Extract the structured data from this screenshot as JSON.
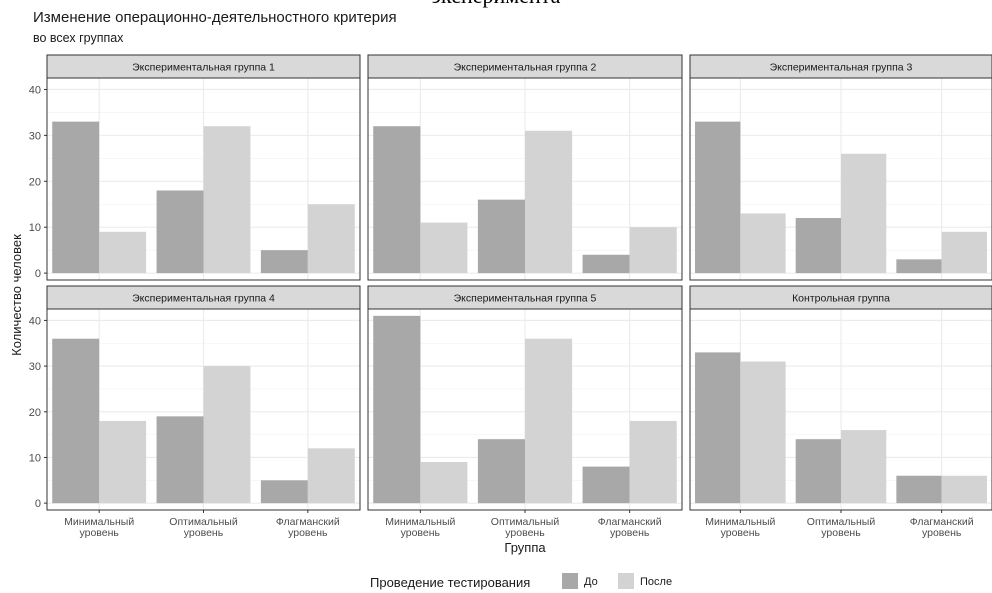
{
  "header": {
    "cut_title": "эксперимента",
    "title": "Изменение операционно-деятельностного критерия",
    "subtitle": "во всех группах"
  },
  "colors": {
    "before": "#a8a8a8",
    "after": "#d3d3d3",
    "strip": "#d9d9d9",
    "grid": "#ebebeb"
  },
  "legend": {
    "title": "Проведение тестирования",
    "items": [
      "До",
      "После"
    ]
  },
  "chart_data": {
    "type": "bar",
    "facets": true,
    "xlabel": "Группа",
    "ylabel": "Количество человек",
    "ylim": [
      -1.5,
      42.5
    ],
    "yticks": [
      0,
      10,
      20,
      30,
      40
    ],
    "grid": true,
    "legend_position": "bottom",
    "categories": [
      [
        "Минимальный",
        "уровень"
      ],
      [
        "Оптимальный",
        "уровень"
      ],
      [
        "Флагманский",
        "уровень"
      ]
    ],
    "series_names": [
      "До",
      "После"
    ],
    "panels": [
      {
        "title": "Экспериментальная группа 1",
        "before": [
          33,
          18,
          5
        ],
        "after": [
          9,
          32,
          15
        ]
      },
      {
        "title": "Экспериментальная группа 2",
        "before": [
          32,
          16,
          4
        ],
        "after": [
          11,
          31,
          10
        ]
      },
      {
        "title": "Экспериментальная группа 3",
        "before": [
          33,
          12,
          3
        ],
        "after": [
          13,
          26,
          9
        ]
      },
      {
        "title": "Экспериментальная группа 4",
        "before": [
          36,
          19,
          5
        ],
        "after": [
          18,
          30,
          12
        ]
      },
      {
        "title": "Экспериментальная группа 5",
        "before": [
          41,
          14,
          8
        ],
        "after": [
          9,
          36,
          18
        ]
      },
      {
        "title": "Контрольная группа",
        "before": [
          33,
          14,
          6
        ],
        "after": [
          31,
          16,
          6
        ]
      }
    ]
  }
}
